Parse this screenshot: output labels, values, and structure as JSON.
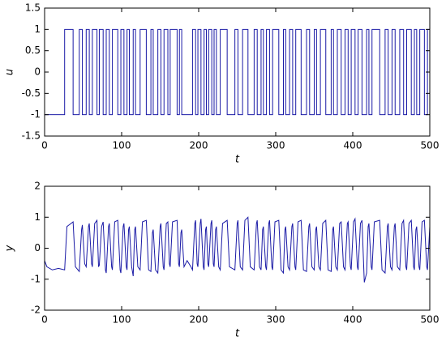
{
  "chart_data": [
    {
      "type": "line",
      "step": "post",
      "xlabel": "t",
      "ylabel": "u",
      "xlim": [
        0,
        500
      ],
      "ylim": [
        -1.5,
        1.5
      ],
      "xticks": [
        0,
        100,
        200,
        300,
        400,
        500
      ],
      "yticks": [
        -1.5,
        -1,
        -0.5,
        0,
        0.5,
        1,
        1.5
      ],
      "x": [
        0,
        26,
        37,
        45,
        49,
        54,
        58,
        62,
        68,
        71,
        76,
        80,
        84,
        88,
        95,
        99,
        103,
        107,
        110,
        115,
        118,
        124,
        132,
        138,
        141,
        147,
        151,
        155,
        160,
        163,
        172,
        175,
        178,
        192,
        196,
        199,
        203,
        207,
        210,
        213,
        217,
        220,
        223,
        228,
        237,
        247,
        251,
        257,
        264,
        272,
        276,
        281,
        284,
        288,
        292,
        296,
        304,
        310,
        313,
        318,
        322,
        326,
        333,
        340,
        344,
        350,
        353,
        358,
        365,
        372,
        375,
        380,
        385,
        390,
        394,
        398,
        403,
        407,
        412,
        418,
        421,
        425,
        435,
        442,
        446,
        451,
        455,
        461,
        466,
        470,
        476,
        480,
        483,
        487,
        493,
        497,
        500
      ],
      "series": [
        {
          "color": "#1a1aa6",
          "values": [
            -1,
            1,
            -1,
            1,
            -1,
            1,
            -1,
            1,
            -1,
            1,
            -1,
            1,
            -1,
            1,
            -1,
            1,
            -1,
            1,
            -1,
            1,
            -1,
            1,
            -1,
            1,
            -1,
            1,
            -1,
            1,
            -1,
            1,
            -1,
            1,
            -1,
            1,
            -1,
            1,
            -1,
            1,
            -1,
            1,
            -1,
            1,
            -1,
            1,
            -1,
            1,
            -1,
            1,
            -1,
            1,
            -1,
            1,
            -1,
            1,
            -1,
            1,
            -1,
            1,
            -1,
            1,
            -1,
            1,
            -1,
            1,
            -1,
            1,
            -1,
            1,
            -1,
            1,
            -1,
            1,
            -1,
            1,
            -1,
            1,
            -1,
            1,
            -1,
            1,
            -1,
            1,
            -1,
            1,
            -1,
            1,
            -1,
            1,
            -1,
            1,
            -1,
            1,
            -1,
            1,
            -1,
            1,
            1
          ]
        }
      ]
    },
    {
      "type": "line",
      "xlabel": "t",
      "ylabel": "y",
      "xlim": [
        0,
        500
      ],
      "ylim": [
        -2,
        2
      ],
      "xticks": [
        0,
        100,
        200,
        300,
        400,
        500
      ],
      "yticks": [
        -2,
        -1,
        0,
        1,
        2
      ],
      "x": [
        0,
        3,
        10,
        18,
        26,
        29,
        37,
        40,
        45,
        48,
        49,
        52,
        54,
        57,
        58,
        61,
        62,
        65,
        68,
        70,
        71,
        74,
        76,
        79,
        80,
        83,
        84,
        87,
        88,
        91,
        95,
        98,
        99,
        102,
        103,
        106,
        107,
        109,
        110,
        113,
        115,
        117,
        118,
        121,
        124,
        127,
        132,
        135,
        138,
        140,
        141,
        144,
        147,
        150,
        151,
        154,
        155,
        158,
        160,
        162,
        163,
        166,
        172,
        174,
        175,
        177,
        178,
        181,
        185,
        190,
        192,
        195,
        196,
        198,
        199,
        202,
        203,
        206,
        207,
        209,
        210,
        212,
        213,
        216,
        217,
        219,
        220,
        222,
        223,
        226,
        228,
        231,
        237,
        240,
        247,
        250,
        251,
        254,
        257,
        260,
        264,
        267,
        272,
        275,
        276,
        279,
        281,
        283,
        284,
        287,
        288,
        291,
        292,
        295,
        296,
        299,
        304,
        307,
        310,
        312,
        313,
        316,
        318,
        321,
        322,
        325,
        326,
        329,
        333,
        336,
        340,
        343,
        344,
        347,
        350,
        352,
        353,
        356,
        358,
        361,
        365,
        368,
        372,
        374,
        375,
        378,
        380,
        383,
        385,
        388,
        390,
        393,
        394,
        397,
        398,
        401,
        403,
        406,
        407,
        410,
        412,
        415,
        418,
        420,
        421,
        424,
        425,
        428,
        435,
        438,
        442,
        445,
        446,
        449,
        451,
        454,
        455,
        458,
        461,
        464,
        466,
        469,
        470,
        473,
        476,
        479,
        480,
        482,
        483,
        486,
        487,
        490,
        493,
        496,
        497,
        500
      ],
      "series": [
        {
          "color": "#1a1aa6",
          "values": [
            -0.4,
            -0.6,
            -0.7,
            -0.65,
            -0.7,
            0.7,
            0.85,
            -0.6,
            -0.75,
            0.6,
            0.75,
            -0.5,
            -0.6,
            0.7,
            0.8,
            -0.5,
            -0.6,
            0.8,
            0.9,
            -0.6,
            -0.55,
            0.7,
            0.85,
            -0.7,
            -0.8,
            0.7,
            0.8,
            -0.6,
            -0.7,
            0.85,
            0.9,
            -0.7,
            -0.8,
            0.7,
            0.8,
            -0.6,
            -0.7,
            0.6,
            0.7,
            -0.6,
            -0.9,
            0.6,
            0.7,
            -0.6,
            -0.7,
            0.85,
            0.9,
            -0.7,
            -0.75,
            0.5,
            0.6,
            -0.7,
            -0.8,
            0.7,
            0.8,
            -0.6,
            -0.7,
            0.8,
            0.85,
            -0.5,
            -0.6,
            0.85,
            0.9,
            -0.5,
            -0.6,
            0.5,
            0.6,
            -0.6,
            -0.4,
            -0.6,
            -0.7,
            0.8,
            0.9,
            -0.5,
            -0.6,
            0.8,
            0.95,
            -0.6,
            -0.7,
            0.6,
            0.7,
            -0.5,
            -0.6,
            0.8,
            0.9,
            -0.5,
            -0.6,
            0.6,
            0.7,
            -0.6,
            -0.7,
            0.8,
            0.9,
            -0.6,
            -0.7,
            0.8,
            0.9,
            -0.6,
            -0.7,
            0.9,
            1.0,
            -0.6,
            -0.7,
            0.8,
            0.9,
            -0.6,
            -0.7,
            0.6,
            0.7,
            -0.6,
            -0.7,
            0.8,
            0.9,
            -0.6,
            -0.7,
            0.85,
            0.9,
            -0.7,
            -0.8,
            0.6,
            0.7,
            -0.6,
            -0.7,
            0.7,
            0.8,
            -0.6,
            -0.7,
            0.85,
            0.9,
            -0.7,
            -0.75,
            0.7,
            0.8,
            -0.6,
            -0.7,
            0.6,
            0.7,
            -0.6,
            -0.7,
            0.8,
            0.9,
            -0.7,
            -0.75,
            0.6,
            0.7,
            -0.6,
            -0.7,
            0.8,
            0.85,
            -0.6,
            -0.7,
            0.8,
            0.85,
            -0.6,
            -0.7,
            0.85,
            0.95,
            -0.6,
            -0.7,
            0.8,
            0.9,
            -1.1,
            -0.8,
            0.7,
            0.8,
            -0.6,
            -0.7,
            0.85,
            0.9,
            -0.7,
            -0.8,
            0.7,
            0.8,
            -0.6,
            -0.7,
            0.7,
            0.8,
            -0.6,
            -0.7,
            0.8,
            0.9,
            -0.6,
            -0.7,
            0.8,
            0.9,
            -0.6,
            -0.7,
            0.6,
            0.7,
            -0.6,
            -0.7,
            0.85,
            0.9,
            -0.6,
            -0.7,
            0.7
          ]
        }
      ]
    }
  ]
}
